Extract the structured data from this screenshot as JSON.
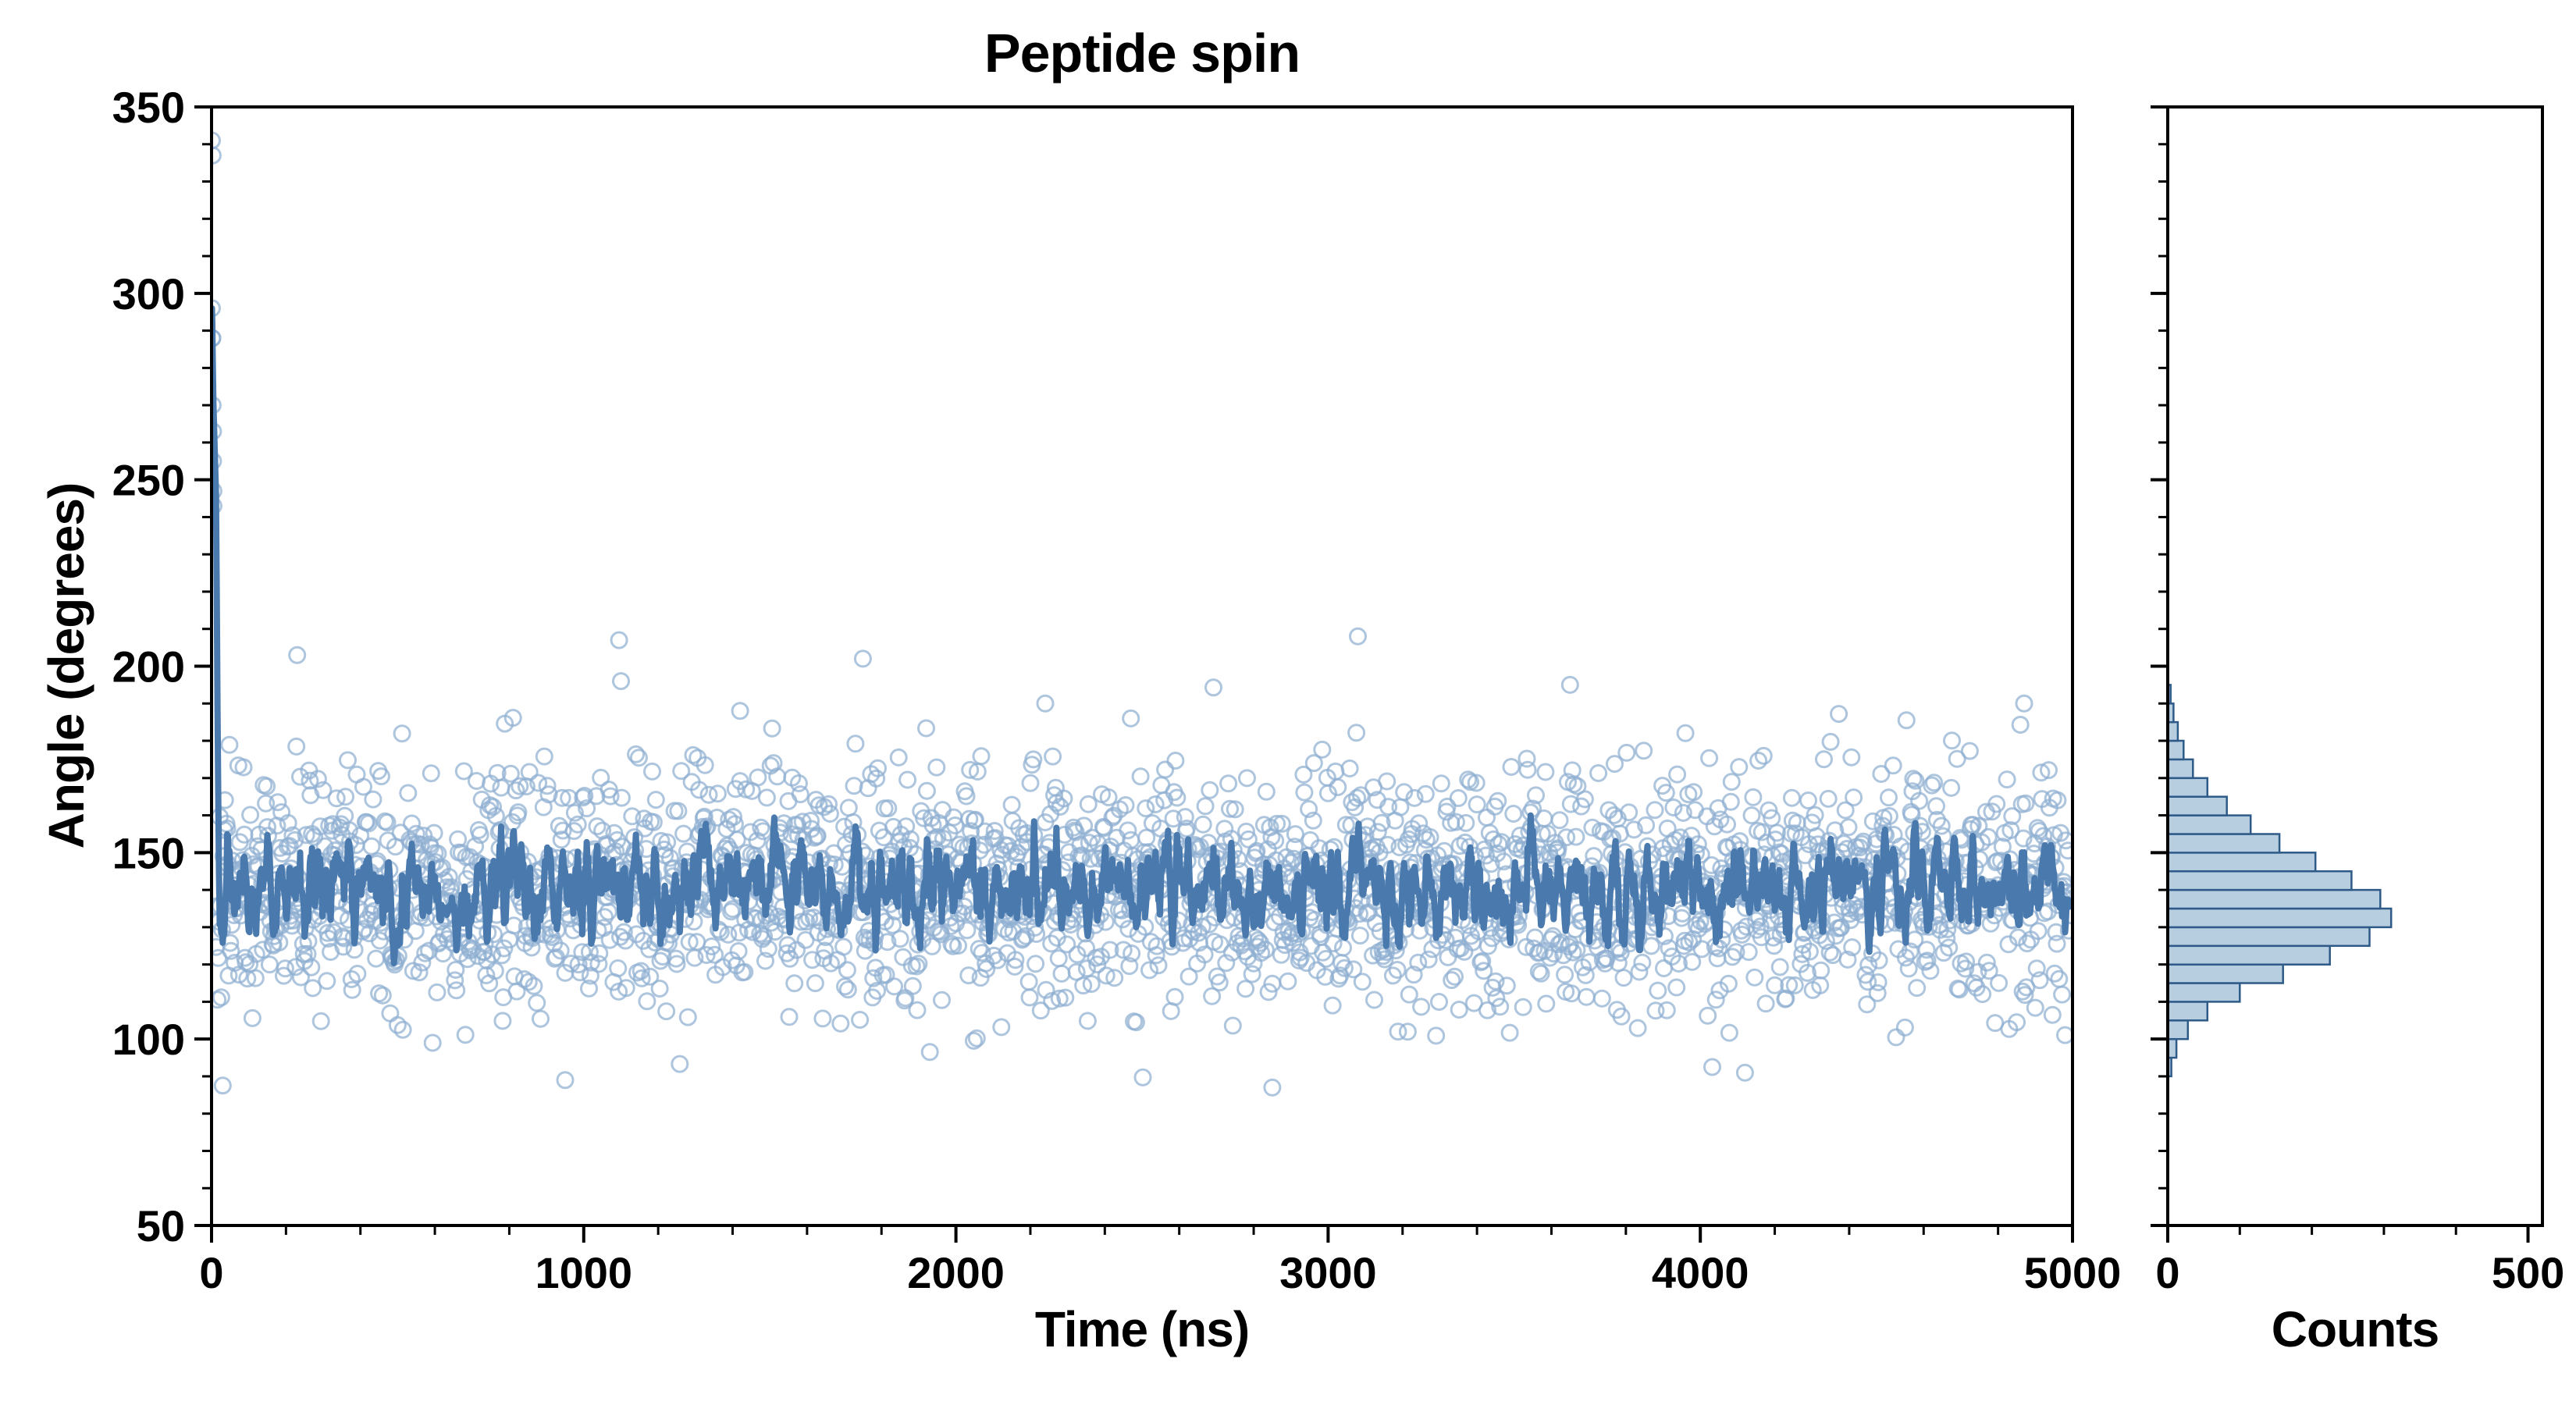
{
  "figure": {
    "title": "Peptide spin",
    "background": "#ffffff"
  },
  "main_plot": {
    "xlabel": "Time (ns)",
    "ylabel": "Angle (degrees)",
    "xlim": [
      0,
      5000
    ],
    "ylim": [
      50,
      350
    ],
    "x_ticks": [
      0,
      1000,
      2000,
      3000,
      4000,
      5000
    ],
    "y_ticks": [
      50,
      100,
      150,
      200,
      250,
      300,
      350
    ]
  },
  "hist_panel": {
    "xlabel": "Counts",
    "xlim": [
      0,
      520
    ],
    "x_ticks": [
      0,
      500
    ]
  },
  "chart_data": [
    {
      "type": "scatter",
      "title": "Peptide spin",
      "xlabel": "Time (ns)",
      "ylabel": "Angle (degrees)",
      "xlim": [
        0,
        5000
      ],
      "ylim": [
        50,
        350
      ],
      "grid": false,
      "description": "MD trajectory of a peptide angle: ~2500 samples (every 2 ns) as light open circles fluctuating around ~140 deg (sd ~16 deg), brief initial transient from ~340 deg down to the band near t=0; thick dark line is a running mean fluctuating ~120-168 deg.",
      "series": [
        {
          "name": "angle samples",
          "marker": "open-circle",
          "color": "#8fafd1",
          "n_points": 2490,
          "x_start": 12,
          "x_step": 2,
          "mean": 140,
          "std": 16,
          "seed": 42
        },
        {
          "name": "running mean",
          "style": "line",
          "color": "#4a7aad",
          "window": 6,
          "line_width": 8
        }
      ],
      "start_transient": [
        [
          1,
          296
        ],
        [
          2,
          288
        ],
        [
          3,
          270
        ],
        [
          4,
          255
        ],
        [
          5,
          243
        ]
      ],
      "extra_points": [
        [
          1,
          341
        ],
        [
          3,
          337
        ],
        [
          2,
          288
        ],
        [
          4,
          263
        ],
        [
          5,
          247
        ],
        [
          230,
          203
        ],
        [
          950,
          89
        ],
        [
          1095,
          207
        ],
        [
          1100,
          196
        ],
        [
          1420,
          188
        ],
        [
          1750,
          202
        ],
        [
          2240,
          190
        ],
        [
          2470,
          186
        ],
        [
          2850,
          87
        ],
        [
          3080,
          208
        ],
        [
          3650,
          195
        ],
        [
          4120,
          91
        ],
        [
          4870,
          190
        ]
      ]
    },
    {
      "type": "histogram",
      "orientation": "horizontal",
      "xlabel": "Counts",
      "ylabel": "Angle (degrees)",
      "xlim": [
        0,
        520
      ],
      "ylim": [
        50,
        350
      ],
      "x_ticks": [
        0,
        500
      ],
      "bin_width": 5,
      "bin_centers": [
        92.5,
        97.5,
        102.5,
        107.5,
        112.5,
        117.5,
        122.5,
        127.5,
        132.5,
        137.5,
        142.5,
        147.5,
        152.5,
        157.5,
        162.5,
        167.5,
        172.5,
        177.5,
        182.5,
        187.5,
        192.5
      ],
      "counts": [
        5,
        12,
        28,
        55,
        100,
        160,
        225,
        280,
        310,
        295,
        255,
        205,
        155,
        115,
        82,
        55,
        35,
        22,
        14,
        8,
        4
      ],
      "bar_fill": "#b7cde0",
      "bar_stroke": "#2e5a88"
    }
  ]
}
